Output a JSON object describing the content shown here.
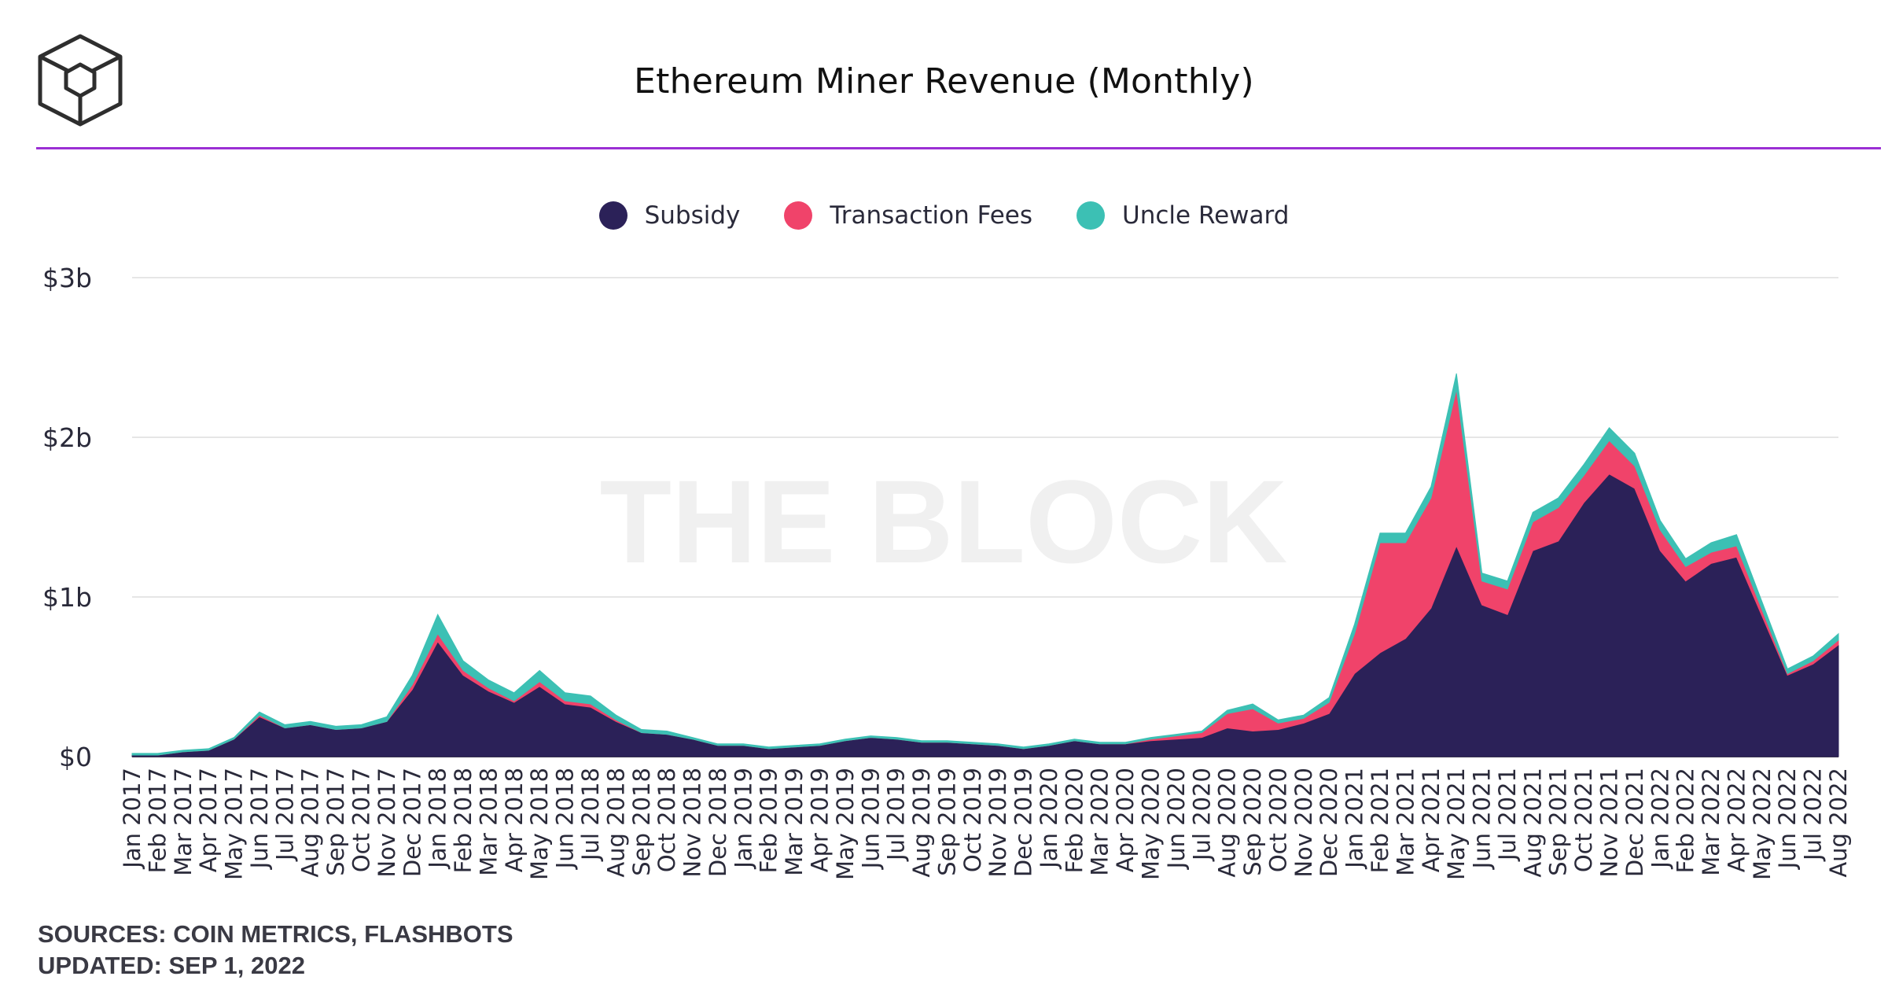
{
  "header": {
    "title": "Ethereum Miner Revenue (Monthly)",
    "brand_icon": "cube-logo-icon"
  },
  "watermark": "THE BLOCK",
  "footer": {
    "sources": "SOURCES: COIN METRICS, FLASHBOTS",
    "updated": "UPDATED: SEP 1, 2022"
  },
  "colors": {
    "subsidy": "#2b2158",
    "fees": "#f0436a",
    "uncle": "#3cc0b4",
    "accent": "#9b2fd4"
  },
  "chart_data": {
    "type": "area",
    "stacked": true,
    "title": "Ethereum Miner Revenue (Monthly)",
    "legend_position": "top-center",
    "grid": true,
    "ylim": [
      0,
      3
    ],
    "y_unit": "billion USD",
    "y_ticks": [
      {
        "value": 0,
        "label": "$0"
      },
      {
        "value": 1,
        "label": "$1b"
      },
      {
        "value": 2,
        "label": "$2b"
      },
      {
        "value": 3,
        "label": "$3b"
      }
    ],
    "categories": [
      "Jan 2017",
      "Feb 2017",
      "Mar 2017",
      "Apr 2017",
      "May 2017",
      "Jun 2017",
      "Jul 2017",
      "Aug 2017",
      "Sep 2017",
      "Oct 2017",
      "Nov 2017",
      "Dec 2017",
      "Jan 2018",
      "Feb 2018",
      "Mar 2018",
      "Apr 2018",
      "May 2018",
      "Jun 2018",
      "Jul 2018",
      "Aug 2018",
      "Sep 2018",
      "Oct 2018",
      "Nov 2018",
      "Dec 2018",
      "Jan 2019",
      "Feb 2019",
      "Mar 2019",
      "Apr 2019",
      "May 2019",
      "Jun 2019",
      "Jul 2019",
      "Aug 2019",
      "Sep 2019",
      "Oct 2019",
      "Nov 2019",
      "Dec 2019",
      "Jan 2020",
      "Feb 2020",
      "Mar 2020",
      "Apr 2020",
      "May 2020",
      "Jun 2020",
      "Jul 2020",
      "Aug 2020",
      "Sep 2020",
      "Oct 2020",
      "Nov 2020",
      "Dec 2020",
      "Jan 2021",
      "Feb 2021",
      "Mar 2021",
      "Apr 2021",
      "May 2021",
      "Jun 2021",
      "Jul 2021",
      "Aug 2021",
      "Sep 2021",
      "Oct 2021",
      "Nov 2021",
      "Dec 2021",
      "Jan 2022",
      "Feb 2022",
      "Mar 2022",
      "Apr 2022",
      "May 2022",
      "Jun 2022",
      "Jul 2022",
      "Aug 2022"
    ],
    "series": [
      {
        "name": "Subsidy",
        "values": [
          0.01,
          0.01,
          0.03,
          0.04,
          0.11,
          0.25,
          0.18,
          0.2,
          0.17,
          0.18,
          0.22,
          0.42,
          0.72,
          0.51,
          0.41,
          0.34,
          0.44,
          0.33,
          0.31,
          0.22,
          0.15,
          0.14,
          0.11,
          0.07,
          0.07,
          0.05,
          0.06,
          0.07,
          0.1,
          0.12,
          0.11,
          0.09,
          0.09,
          0.08,
          0.07,
          0.05,
          0.07,
          0.1,
          0.08,
          0.08,
          0.1,
          0.11,
          0.12,
          0.18,
          0.16,
          0.17,
          0.21,
          0.27,
          0.52,
          0.65,
          0.74,
          0.93,
          1.32,
          0.95,
          0.89,
          1.29,
          1.35,
          1.59,
          1.77,
          1.68,
          1.29,
          1.1,
          1.21,
          1.25,
          0.88,
          0.51,
          0.58,
          0.7
        ]
      },
      {
        "name": "Transaction Fees",
        "values": [
          0.0,
          0.0,
          0.0,
          0.0,
          0.0,
          0.01,
          0.0,
          0.0,
          0.0,
          0.0,
          0.0,
          0.03,
          0.05,
          0.03,
          0.02,
          0.01,
          0.03,
          0.02,
          0.02,
          0.01,
          0.0,
          0.0,
          0.0,
          0.0,
          0.0,
          0.0,
          0.0,
          0.0,
          0.0,
          0.0,
          0.0,
          0.0,
          0.0,
          0.0,
          0.0,
          0.0,
          0.0,
          0.0,
          0.0,
          0.0,
          0.01,
          0.02,
          0.03,
          0.09,
          0.14,
          0.04,
          0.03,
          0.07,
          0.25,
          0.69,
          0.6,
          0.69,
          0.98,
          0.15,
          0.16,
          0.18,
          0.21,
          0.17,
          0.21,
          0.14,
          0.13,
          0.09,
          0.07,
          0.07,
          0.04,
          0.01,
          0.02,
          0.03
        ]
      },
      {
        "name": "Uncle Reward",
        "values": [
          0.01,
          0.01,
          0.01,
          0.01,
          0.01,
          0.02,
          0.02,
          0.02,
          0.02,
          0.02,
          0.03,
          0.06,
          0.12,
          0.06,
          0.05,
          0.05,
          0.07,
          0.05,
          0.05,
          0.03,
          0.02,
          0.02,
          0.01,
          0.01,
          0.01,
          0.01,
          0.01,
          0.01,
          0.01,
          0.01,
          0.01,
          0.01,
          0.01,
          0.01,
          0.01,
          0.01,
          0.01,
          0.01,
          0.01,
          0.01,
          0.01,
          0.01,
          0.01,
          0.02,
          0.03,
          0.02,
          0.02,
          0.03,
          0.06,
          0.06,
          0.06,
          0.07,
          0.1,
          0.05,
          0.05,
          0.06,
          0.06,
          0.07,
          0.08,
          0.08,
          0.06,
          0.05,
          0.06,
          0.07,
          0.05,
          0.03,
          0.03,
          0.04
        ]
      }
    ]
  }
}
